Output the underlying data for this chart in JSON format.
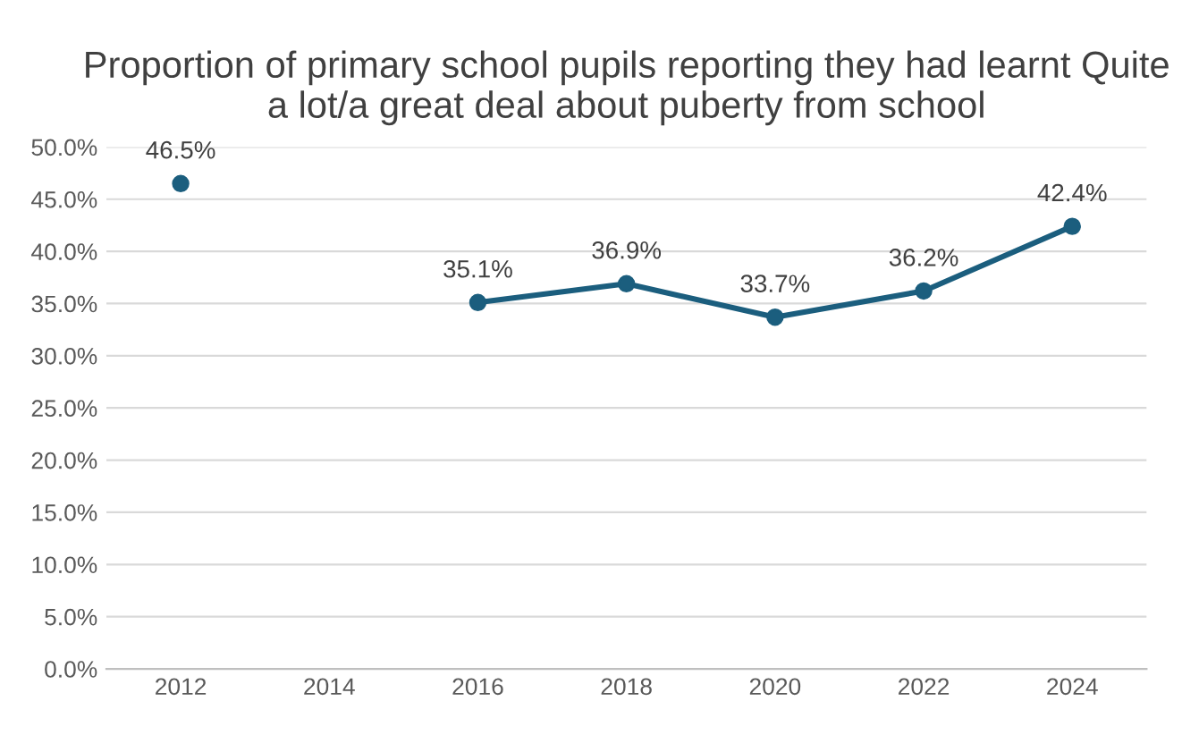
{
  "chart_data": {
    "type": "line",
    "title": "Proportion of primary school pupils reporting they had learnt Quite a lot/a great deal about puberty from school",
    "categories": [
      "2012",
      "2014",
      "2016",
      "2018",
      "2020",
      "2022",
      "2024"
    ],
    "series": [
      {
        "color": "#1b5e7e",
        "values": [
          46.5,
          null,
          35.1,
          36.9,
          33.7,
          36.2,
          42.4
        ],
        "value_labels": [
          "46.5%",
          null,
          "35.1%",
          "36.9%",
          "33.7%",
          "36.2%",
          "42.4%"
        ]
      }
    ],
    "ylim": [
      0,
      50
    ],
    "yticks": [
      {
        "value": 0,
        "label": "0.0%"
      },
      {
        "value": 5,
        "label": "5.0%"
      },
      {
        "value": 10,
        "label": "10.0%"
      },
      {
        "value": 15,
        "label": "15.0%"
      },
      {
        "value": 20,
        "label": "20.0%"
      },
      {
        "value": 25,
        "label": "25.0%"
      },
      {
        "value": 30,
        "label": "30.0%"
      },
      {
        "value": 35,
        "label": "35.0%"
      },
      {
        "value": 40,
        "label": "40.0%"
      },
      {
        "value": 45,
        "label": "45.0%"
      },
      {
        "value": 50,
        "label": "50.0%"
      }
    ],
    "grid": "y",
    "marker": "circle",
    "line_style": "solid",
    "legend": false
  }
}
